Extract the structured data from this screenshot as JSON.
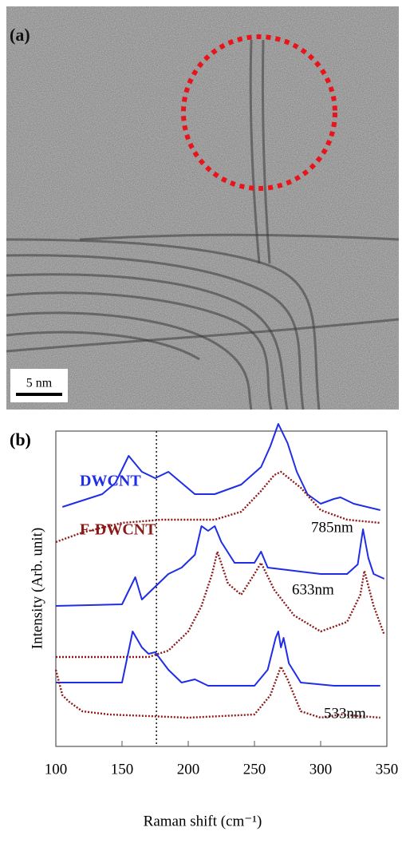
{
  "image": {
    "label": "(a)",
    "scale_bar": "5 nm"
  },
  "chart_data": {
    "type": "line",
    "label": "(b)",
    "xlabel": "Raman shift  (cm⁻¹)",
    "ylabel": "Intensity (Arb. unit)",
    "xlim": [
      100,
      350
    ],
    "xticks": [
      100,
      150,
      200,
      250,
      300,
      350
    ],
    "ylim": [
      0,
      102
    ],
    "vline": 176,
    "series": [
      {
        "name": "DWCNT",
        "color": "#1f2ee6",
        "style": "solid"
      },
      {
        "name": "F-DWCNT",
        "color": "#8b1a1a",
        "style": "dotted"
      }
    ],
    "spectra": [
      {
        "label": "785nm",
        "curves": [
          {
            "x": [
              105,
              120,
              135,
              145,
              155,
              165,
              175,
              185,
              195,
              205,
              220,
              240,
              255,
              262,
              268,
              275,
              282,
              290,
              300,
              310,
              315,
              325,
              345
            ],
            "values": [
              75,
              77,
              79,
              82.5,
              91,
              86,
              84,
              86,
              82.5,
              79,
              79,
              82,
              87.5,
              94,
              101,
              95,
              86,
              79,
              76,
              77.5,
              78,
              76,
              74
            ]
          },
          {
            "x": [
              100,
              120,
              150,
              180,
              220,
              240,
              255,
              265,
              270,
              285,
              300,
              320,
              345
            ],
            "values": [
              64,
              67,
              70,
              71,
              71,
              73.5,
              80,
              85,
              86,
              81,
              74,
              71,
              70
            ]
          }
        ]
      },
      {
        "label": "633nm",
        "curves": [
          {
            "x": [
              100,
              150,
              160,
              165,
              175,
              185,
              195,
              205,
              210,
              215,
              220,
              225,
              235,
              250,
              255,
              260,
              280,
              300,
              320,
              328,
              332,
              336,
              340,
              348
            ],
            "values": [
              44,
              44.5,
              53,
              46,
              50,
              54,
              56,
              60,
              69,
              67.5,
              69,
              64,
              57.5,
              57.5,
              61,
              56,
              55,
              54,
              54,
              57,
              68,
              59,
              54,
              52.5
            ]
          },
          {
            "x": [
              100,
              170,
              185,
              200,
              210,
              218,
              222,
              230,
              240,
              250,
              255,
              265,
              280,
              300,
              320,
              330,
              333,
              340,
              348
            ],
            "values": [
              28,
              28,
              30,
              36,
              44,
              54,
              61,
              51,
              47.5,
              54,
              57.5,
              49,
              41,
              36,
              39,
              47.5,
              55,
              44,
              35
            ]
          }
        ]
      },
      {
        "label": "533nm",
        "curves": [
          {
            "x": [
              100,
              150,
              158,
              165,
              170,
              175,
              185,
              195,
              205,
              215,
              250,
              260,
              266,
              268,
              270,
              272,
              276,
              285,
              310,
              345
            ],
            "values": [
              20,
              20,
              36,
              31,
              29,
              29.5,
              24,
              20,
              21,
              19,
              19,
              24,
              34,
              36,
              31,
              34,
              26,
              20,
              19,
              19
            ]
          },
          {
            "x": [
              100,
              105,
              110,
              120,
              140,
              200,
              250,
              262,
              270,
              275,
              285,
              300,
              315,
              345
            ],
            "values": [
              24,
              16,
              14,
              11,
              10,
              9,
              10,
              16,
              25,
              21,
              11,
              9,
              10,
              9
            ]
          }
        ]
      }
    ]
  }
}
